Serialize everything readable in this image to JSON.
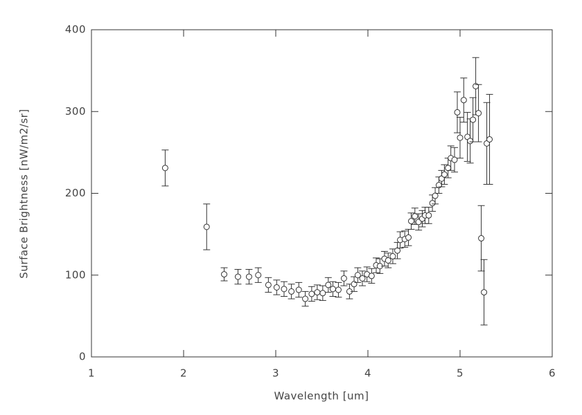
{
  "chart_data": {
    "type": "scatter",
    "xlabel": "Wavelength [um]",
    "ylabel": "Surface Brightness [nW/m2/sr]",
    "color": "#333333",
    "xlim": [
      1,
      6
    ],
    "ylim": [
      0,
      400
    ],
    "xticks": [
      1,
      2,
      3,
      4,
      5,
      6
    ],
    "yticks": [
      0,
      100,
      200,
      300,
      400
    ],
    "x": [
      1.8,
      2.25,
      2.44,
      2.59,
      2.71,
      2.81,
      2.92,
      3.01,
      3.09,
      3.17,
      3.25,
      3.32,
      3.39,
      3.45,
      3.51,
      3.57,
      3.62,
      3.68,
      3.74,
      3.8,
      3.85,
      3.89,
      3.94,
      3.99,
      4.04,
      4.09,
      4.13,
      4.18,
      4.22,
      4.27,
      4.32,
      4.35,
      4.4,
      4.44,
      4.47,
      4.51,
      4.55,
      4.59,
      4.62,
      4.66,
      4.7,
      4.73,
      4.77,
      4.8,
      4.83,
      4.87,
      4.9,
      4.94,
      4.97,
      5.0,
      5.04,
      5.08,
      5.11,
      5.14,
      5.17,
      5.2,
      5.23,
      5.26,
      5.29,
      5.32
    ],
    "values": [
      231,
      159,
      101,
      98,
      98,
      100,
      88,
      85,
      83,
      80,
      82,
      71,
      77,
      79,
      78,
      88,
      83,
      82,
      96,
      80,
      89,
      100,
      96,
      101,
      99,
      112,
      111,
      120,
      118,
      123,
      130,
      143,
      144,
      146,
      166,
      172,
      165,
      169,
      173,
      173,
      188,
      197,
      210,
      218,
      223,
      231,
      243,
      241,
      299,
      268,
      314,
      269,
      264,
      290,
      331,
      298,
      145,
      79,
      261,
      266
    ],
    "errors": [
      22,
      28,
      8,
      9,
      9,
      9,
      9,
      9,
      9,
      9,
      9,
      9,
      9,
      9,
      9,
      9,
      9,
      9,
      9,
      9,
      9,
      9,
      9,
      9,
      9,
      9,
      9,
      9,
      9,
      9,
      10,
      10,
      10,
      10,
      10,
      10,
      10,
      10,
      10,
      10,
      10,
      10,
      10,
      10,
      12,
      12,
      15,
      15,
      25,
      25,
      27,
      30,
      27,
      27,
      35,
      35,
      40,
      40,
      50,
      55
    ]
  }
}
